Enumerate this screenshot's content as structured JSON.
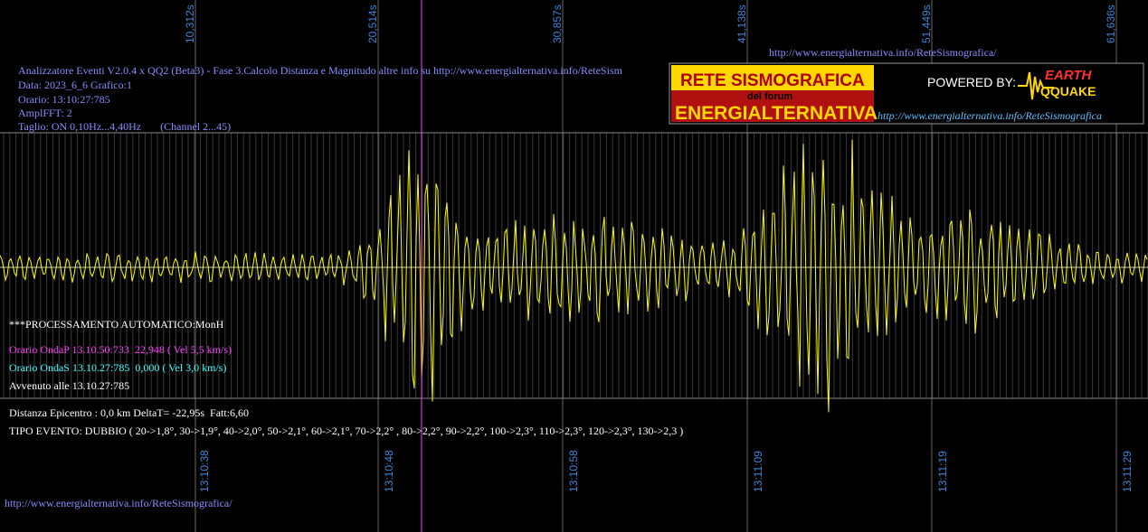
{
  "top_ticks": [
    "10,312s",
    "20,514s",
    "30,857s",
    "41,138s",
    "51,449s",
    "61,636s"
  ],
  "top_url": "http://www.energialternativa.info/ReteSismografica/",
  "info": [
    "Analizzatore Eventi V2.0.4 x QQ2 (Beta3) - Fase 3.Calcolo Distanza e Magnitudo altre info su http://www.energialternativa.info/ReteSism",
    "Data: 2023_6_6 Grafico:1",
    "Orario: 13:10:27:785",
    "AmplFFT: 2",
    "Taglio: ON 0,10Hz...4,40Hz       (Channel 2...45)"
  ],
  "logo": {
    "title": "RETE SISMOGRAFICA",
    "subtitle": "del forum",
    "name": "ENERGIALTERNATIVA",
    "powered": "POWERED BY:",
    "brand_top": "EARTH",
    "brand_bottom": "QQUAKE",
    "url": "http://www.energialternativa.info/ReteSismografica"
  },
  "processing": "***PROCESSAMENTO AUTOMATICO:MonH",
  "onda_p": "Orario OndaP 13.10.50:733  22,948 ( Vel 5,5 km/s)",
  "onda_s": "Orario OndaS 13.10.27:785  0,000 ( Vel 3,0 km/s)",
  "avvenuto": "Avvenuto alle 13.10.27:785",
  "distanza": "Distanza Epicentro : 0,0 km DeltaT= -22,95s  Fatt:6,60",
  "tipo": "TIPO EVENTO: DUBBIO ( 20->1,8°, 30->1,9°, 40->2,0°, 50->2,1°, 60->2,1°, 70->2,2° , 80->2,2°, 90->2,2°, 100->2,3°, 110->2,3°, 120->2,3°, 130->2,3 )",
  "bottom_ticks": [
    "13:10:38",
    "13:10:48",
    "13:10:58",
    "13:11:09",
    "13:11:19",
    "13:11:29"
  ],
  "bottom_url": "http://www.energialternativa.info/ReteSismografica/"
}
